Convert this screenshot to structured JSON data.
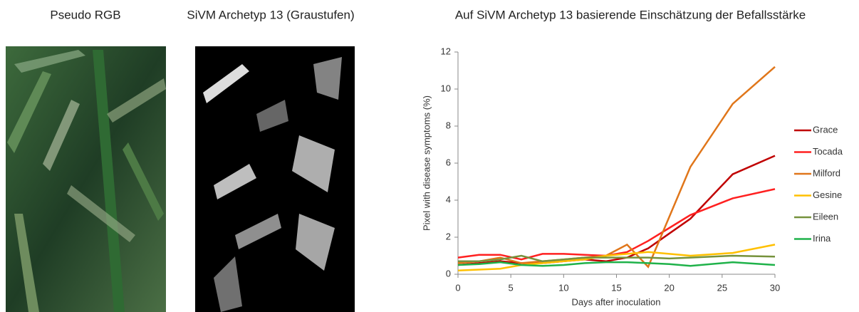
{
  "panels": [
    "Pseudo RGB",
    "SiVM Archetyp 13 (Graustufen)",
    "Auf SiVM Archetyp 13 basierende Einschätzung der Befallsstärke"
  ],
  "chart_data": {
    "type": "line",
    "xlabel": "Days after inoculation",
    "ylabel": "Pixel with disease symptoms (%)",
    "x": [
      0,
      2,
      4,
      6,
      8,
      10,
      12,
      14,
      16,
      18,
      20,
      22,
      26,
      30
    ],
    "xlim": [
      0,
      30
    ],
    "xticks": [
      0,
      5,
      10,
      15,
      20,
      25,
      30
    ],
    "ylim": [
      0,
      12
    ],
    "yticks": [
      0,
      2,
      4,
      6,
      8,
      10,
      12
    ],
    "legend": "right",
    "series": [
      {
        "name": "Grace",
        "color": "#c00000",
        "values": [
          0.5,
          0.6,
          0.7,
          0.6,
          0.6,
          0.7,
          0.8,
          0.7,
          0.9,
          1.4,
          2.2,
          3.0,
          5.4,
          6.4
        ]
      },
      {
        "name": "Tocada",
        "color": "#ff2020",
        "values": [
          0.9,
          1.05,
          1.05,
          0.8,
          1.1,
          1.1,
          1.05,
          1.0,
          1.2,
          1.8,
          2.5,
          3.2,
          4.1,
          4.6
        ]
      },
      {
        "name": "Milford",
        "color": "#e0761a",
        "values": [
          0.6,
          0.7,
          0.9,
          0.6,
          0.7,
          0.8,
          0.9,
          1.0,
          1.6,
          0.4,
          3.1,
          5.8,
          9.2,
          11.2
        ]
      },
      {
        "name": "Gesine",
        "color": "#ffc000",
        "values": [
          0.2,
          0.25,
          0.3,
          0.5,
          0.6,
          0.7,
          0.8,
          1.0,
          1.1,
          1.2,
          1.1,
          1.0,
          1.15,
          1.6
        ]
      },
      {
        "name": "Eileen",
        "color": "#76923c",
        "values": [
          0.7,
          0.7,
          0.8,
          1.0,
          0.7,
          0.8,
          0.9,
          0.9,
          0.9,
          0.9,
          0.85,
          0.9,
          1.0,
          0.95
        ]
      },
      {
        "name": "Irina",
        "color": "#1fb24a",
        "values": [
          0.5,
          0.55,
          0.65,
          0.5,
          0.45,
          0.5,
          0.6,
          0.65,
          0.65,
          0.6,
          0.55,
          0.45,
          0.65,
          0.5
        ]
      }
    ]
  }
}
